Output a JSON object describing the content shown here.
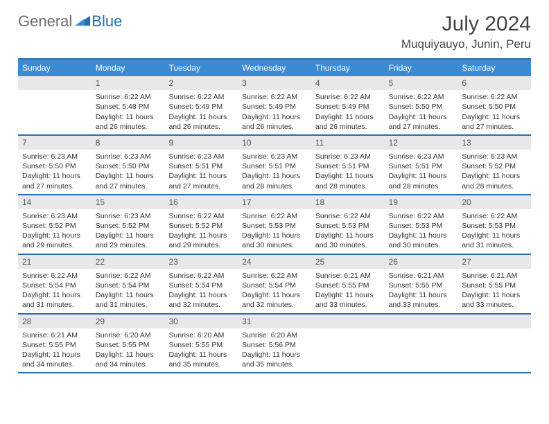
{
  "logo": {
    "text1": "General",
    "text2": "Blue"
  },
  "title": "July 2024",
  "location": "Muquiyauyo, Junin, Peru",
  "colors": {
    "header_bg": "#3b8bd4",
    "border": "#2a6cb0",
    "daynum_bg": "#e8e8e8",
    "text": "#333333",
    "logo_gray": "#6b6b6b",
    "logo_blue": "#2a6cb0"
  },
  "day_headers": [
    "Sunday",
    "Monday",
    "Tuesday",
    "Wednesday",
    "Thursday",
    "Friday",
    "Saturday"
  ],
  "weeks": [
    [
      {
        "n": "",
        "sr": "",
        "ss": "",
        "dl": ""
      },
      {
        "n": "1",
        "sr": "Sunrise: 6:22 AM",
        "ss": "Sunset: 5:48 PM",
        "dl": "Daylight: 11 hours and 26 minutes."
      },
      {
        "n": "2",
        "sr": "Sunrise: 6:22 AM",
        "ss": "Sunset: 5:49 PM",
        "dl": "Daylight: 11 hours and 26 minutes."
      },
      {
        "n": "3",
        "sr": "Sunrise: 6:22 AM",
        "ss": "Sunset: 5:49 PM",
        "dl": "Daylight: 11 hours and 26 minutes."
      },
      {
        "n": "4",
        "sr": "Sunrise: 6:22 AM",
        "ss": "Sunset: 5:49 PM",
        "dl": "Daylight: 11 hours and 26 minutes."
      },
      {
        "n": "5",
        "sr": "Sunrise: 6:22 AM",
        "ss": "Sunset: 5:50 PM",
        "dl": "Daylight: 11 hours and 27 minutes."
      },
      {
        "n": "6",
        "sr": "Sunrise: 6:22 AM",
        "ss": "Sunset: 5:50 PM",
        "dl": "Daylight: 11 hours and 27 minutes."
      }
    ],
    [
      {
        "n": "7",
        "sr": "Sunrise: 6:23 AM",
        "ss": "Sunset: 5:50 PM",
        "dl": "Daylight: 11 hours and 27 minutes."
      },
      {
        "n": "8",
        "sr": "Sunrise: 6:23 AM",
        "ss": "Sunset: 5:50 PM",
        "dl": "Daylight: 11 hours and 27 minutes."
      },
      {
        "n": "9",
        "sr": "Sunrise: 6:23 AM",
        "ss": "Sunset: 5:51 PM",
        "dl": "Daylight: 11 hours and 27 minutes."
      },
      {
        "n": "10",
        "sr": "Sunrise: 6:23 AM",
        "ss": "Sunset: 5:51 PM",
        "dl": "Daylight: 11 hours and 28 minutes."
      },
      {
        "n": "11",
        "sr": "Sunrise: 6:23 AM",
        "ss": "Sunset: 5:51 PM",
        "dl": "Daylight: 11 hours and 28 minutes."
      },
      {
        "n": "12",
        "sr": "Sunrise: 6:23 AM",
        "ss": "Sunset: 5:51 PM",
        "dl": "Daylight: 11 hours and 28 minutes."
      },
      {
        "n": "13",
        "sr": "Sunrise: 6:23 AM",
        "ss": "Sunset: 5:52 PM",
        "dl": "Daylight: 11 hours and 28 minutes."
      }
    ],
    [
      {
        "n": "14",
        "sr": "Sunrise: 6:23 AM",
        "ss": "Sunset: 5:52 PM",
        "dl": "Daylight: 11 hours and 29 minutes."
      },
      {
        "n": "15",
        "sr": "Sunrise: 6:23 AM",
        "ss": "Sunset: 5:52 PM",
        "dl": "Daylight: 11 hours and 29 minutes."
      },
      {
        "n": "16",
        "sr": "Sunrise: 6:22 AM",
        "ss": "Sunset: 5:52 PM",
        "dl": "Daylight: 11 hours and 29 minutes."
      },
      {
        "n": "17",
        "sr": "Sunrise: 6:22 AM",
        "ss": "Sunset: 5:53 PM",
        "dl": "Daylight: 11 hours and 30 minutes."
      },
      {
        "n": "18",
        "sr": "Sunrise: 6:22 AM",
        "ss": "Sunset: 5:53 PM",
        "dl": "Daylight: 11 hours and 30 minutes."
      },
      {
        "n": "19",
        "sr": "Sunrise: 6:22 AM",
        "ss": "Sunset: 5:53 PM",
        "dl": "Daylight: 11 hours and 30 minutes."
      },
      {
        "n": "20",
        "sr": "Sunrise: 6:22 AM",
        "ss": "Sunset: 5:53 PM",
        "dl": "Daylight: 11 hours and 31 minutes."
      }
    ],
    [
      {
        "n": "21",
        "sr": "Sunrise: 6:22 AM",
        "ss": "Sunset: 5:54 PM",
        "dl": "Daylight: 11 hours and 31 minutes."
      },
      {
        "n": "22",
        "sr": "Sunrise: 6:22 AM",
        "ss": "Sunset: 5:54 PM",
        "dl": "Daylight: 11 hours and 31 minutes."
      },
      {
        "n": "23",
        "sr": "Sunrise: 6:22 AM",
        "ss": "Sunset: 5:54 PM",
        "dl": "Daylight: 11 hours and 32 minutes."
      },
      {
        "n": "24",
        "sr": "Sunrise: 6:22 AM",
        "ss": "Sunset: 5:54 PM",
        "dl": "Daylight: 11 hours and 32 minutes."
      },
      {
        "n": "25",
        "sr": "Sunrise: 6:21 AM",
        "ss": "Sunset: 5:55 PM",
        "dl": "Daylight: 11 hours and 33 minutes."
      },
      {
        "n": "26",
        "sr": "Sunrise: 6:21 AM",
        "ss": "Sunset: 5:55 PM",
        "dl": "Daylight: 11 hours and 33 minutes."
      },
      {
        "n": "27",
        "sr": "Sunrise: 6:21 AM",
        "ss": "Sunset: 5:55 PM",
        "dl": "Daylight: 11 hours and 33 minutes."
      }
    ],
    [
      {
        "n": "28",
        "sr": "Sunrise: 6:21 AM",
        "ss": "Sunset: 5:55 PM",
        "dl": "Daylight: 11 hours and 34 minutes."
      },
      {
        "n": "29",
        "sr": "Sunrise: 6:20 AM",
        "ss": "Sunset: 5:55 PM",
        "dl": "Daylight: 11 hours and 34 minutes."
      },
      {
        "n": "30",
        "sr": "Sunrise: 6:20 AM",
        "ss": "Sunset: 5:55 PM",
        "dl": "Daylight: 11 hours and 35 minutes."
      },
      {
        "n": "31",
        "sr": "Sunrise: 6:20 AM",
        "ss": "Sunset: 5:56 PM",
        "dl": "Daylight: 11 hours and 35 minutes."
      },
      {
        "n": "",
        "sr": "",
        "ss": "",
        "dl": ""
      },
      {
        "n": "",
        "sr": "",
        "ss": "",
        "dl": ""
      },
      {
        "n": "",
        "sr": "",
        "ss": "",
        "dl": ""
      }
    ]
  ]
}
